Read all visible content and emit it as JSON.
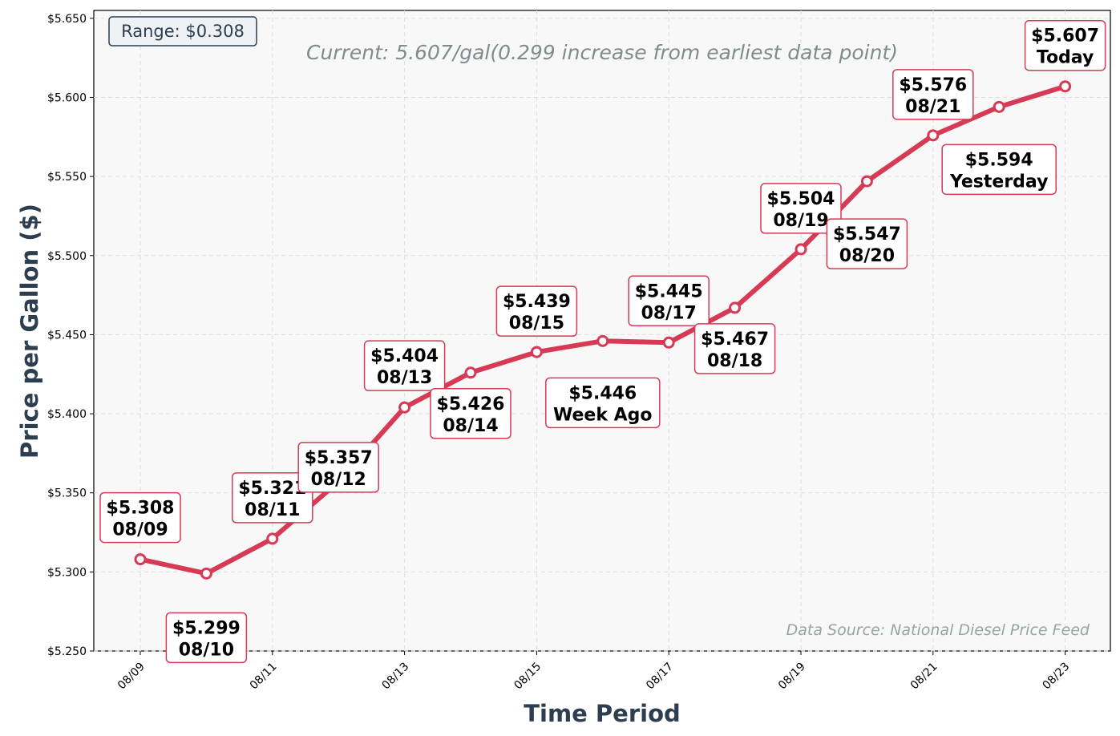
{
  "chart_data": {
    "type": "line",
    "xlabel": "Time Period",
    "ylabel": "Price per Gallon ($)",
    "ylim": [
      5.25,
      5.655
    ],
    "y_ticks": [
      "$5.250",
      "$5.300",
      "$5.350",
      "$5.400",
      "$5.450",
      "$5.500",
      "$5.550",
      "$5.600",
      "$5.650"
    ],
    "x_ticks": [
      "08/09",
      "08/11",
      "08/13",
      "08/15",
      "08/17",
      "08/19",
      "08/21",
      "08/23"
    ],
    "grid": true,
    "series": [
      {
        "color": "#d63a55",
        "points": [
          {
            "x": "08/09",
            "y": 5.308,
            "label_price": "$5.308",
            "label_tag": "08/09"
          },
          {
            "x": "08/10",
            "y": 5.299,
            "label_price": "$5.299",
            "label_tag": "08/10"
          },
          {
            "x": "08/11",
            "y": 5.321,
            "label_price": "$5.321",
            "label_tag": "08/11"
          },
          {
            "x": "08/12",
            "y": 5.357,
            "label_price": "$5.357",
            "label_tag": "08/12"
          },
          {
            "x": "08/13",
            "y": 5.404,
            "label_price": "$5.404",
            "label_tag": "08/13"
          },
          {
            "x": "08/14",
            "y": 5.426,
            "label_price": "$5.426",
            "label_tag": "08/14"
          },
          {
            "x": "08/15",
            "y": 5.439,
            "label_price": "$5.439",
            "label_tag": "08/15"
          },
          {
            "x": "08/16",
            "y": 5.446,
            "label_price": "$5.446",
            "label_tag": "Week Ago"
          },
          {
            "x": "08/17",
            "y": 5.445,
            "label_price": "$5.445",
            "label_tag": "08/17"
          },
          {
            "x": "08/18",
            "y": 5.467,
            "label_price": "$5.467",
            "label_tag": "08/18"
          },
          {
            "x": "08/19",
            "y": 5.504,
            "label_price": "$5.504",
            "label_tag": "08/19"
          },
          {
            "x": "08/20",
            "y": 5.547,
            "label_price": "$5.547",
            "label_tag": "08/20"
          },
          {
            "x": "08/21",
            "y": 5.576,
            "label_price": "$5.576",
            "label_tag": "08/21"
          },
          {
            "x": "08/22",
            "y": 5.594,
            "label_price": "$5.594",
            "label_tag": "Yesterday"
          },
          {
            "x": "08/23",
            "y": 5.607,
            "label_price": "$5.607",
            "label_tag": "Today"
          }
        ]
      }
    ],
    "annotations": {
      "range": "Range: $0.308",
      "current": "Current: 5.607/gal(0.299 increase from earliest data point)",
      "source": "Data Source: National Diesel Price Feed"
    }
  },
  "colors": {
    "line": "#d63a55",
    "plot_bg": "#f8f8f8",
    "axis_label": "#2c3e50",
    "current_text": "#7f8c8d",
    "source_text": "#95a5a6"
  }
}
